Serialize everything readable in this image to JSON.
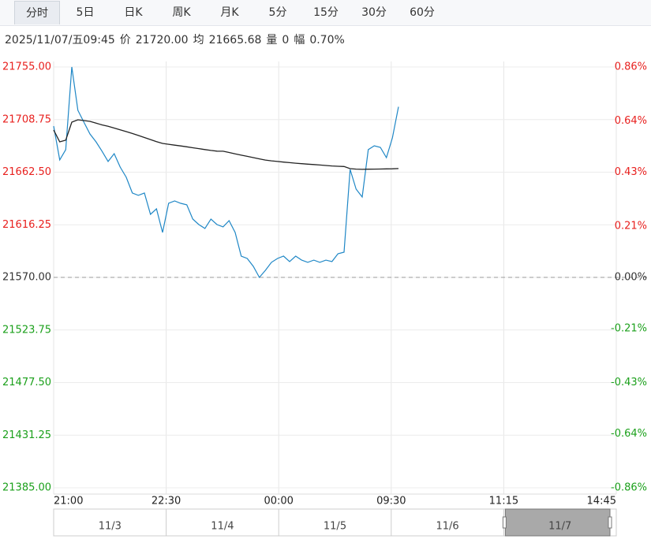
{
  "tabs": [
    "分时",
    "5日",
    "日K",
    "周K",
    "月K",
    "5分",
    "15分",
    "30分",
    "60分"
  ],
  "active_tab": 0,
  "info": {
    "datetime": "2025/11/07/五09:45",
    "price_label": "价",
    "price": "21720.00",
    "avg_label": "均",
    "avg": "21665.68",
    "volume_label": "量",
    "volume": "0",
    "range_label": "幅",
    "range": "0.70%"
  },
  "chart_data": {
    "type": "line",
    "x": [
      0,
      5,
      10,
      15,
      20,
      25,
      30,
      35,
      40,
      45,
      50,
      55,
      60,
      65,
      70,
      75,
      80,
      85,
      90,
      95,
      100,
      105,
      110,
      115,
      120,
      125,
      130,
      135,
      140,
      145,
      150,
      155,
      160,
      165,
      170,
      175,
      180,
      185,
      190,
      195,
      200,
      205,
      210,
      215,
      220,
      225,
      230,
      235,
      240,
      245,
      250,
      255,
      260,
      265,
      270,
      275,
      280,
      285
    ],
    "series": [
      {
        "color": "#1f87c6",
        "values": [
          21703.0,
          21673.3,
          21682.3,
          21755.0,
          21716.9,
          21706.5,
          21696.1,
          21689.2,
          21680.9,
          21671.9,
          21678.8,
          21667.0,
          21658.0,
          21644.2,
          21642.1,
          21644.2,
          21625.4,
          21630.3,
          21609.5,
          21635.1,
          21637.2,
          21635.1,
          21633.8,
          21621.3,
          21616.4,
          21613.0,
          21621.3,
          21616.4,
          21614.4,
          21619.9,
          21609.5,
          21588.7,
          21586.6,
          21579.7,
          21570.0,
          21576.2,
          21583.2,
          21586.6,
          21588.7,
          21583.9,
          21588.7,
          21585.2,
          21583.2,
          21585.2,
          21583.2,
          21585.2,
          21583.9,
          21590.8,
          21592.2,
          21664.9,
          21647.6,
          21640.7,
          21682.3,
          21685.7,
          21684.3,
          21675.3,
          21692.7,
          21720.0
        ]
      },
      {
        "color": "#222222",
        "values": [
          21699.6,
          21689.2,
          21690.6,
          21706.5,
          21708.6,
          21707.9,
          21707.2,
          21705.6,
          21704.1,
          21702.8,
          21701.3,
          21699.8,
          21698.2,
          21696.5,
          21694.8,
          21693.0,
          21691.2,
          21689.4,
          21687.8,
          21687.0,
          21686.3,
          21685.6,
          21684.8,
          21684.0,
          21683.2,
          21682.4,
          21681.6,
          21681.0,
          21680.9,
          21679.8,
          21678.6,
          21677.5,
          21676.4,
          21675.3,
          21674.2,
          21673.2,
          21672.5,
          21671.9,
          21671.4,
          21670.9,
          21670.4,
          21670.0,
          21669.6,
          21669.2,
          21668.8,
          21668.4,
          21668.0,
          21667.7,
          21667.5,
          21665.6,
          21665.2,
          21665.0,
          21665.1,
          21665.2,
          21665.3,
          21665.4,
          21665.5,
          21665.68
        ]
      }
    ],
    "xlim": [
      0,
      465
    ],
    "xticks": [
      {
        "value": 0,
        "label": "21:00"
      },
      {
        "value": 93,
        "label": "22:30"
      },
      {
        "value": 186,
        "label": "00:00"
      },
      {
        "value": 279,
        "label": "09:30"
      },
      {
        "value": 372,
        "label": "11:15"
      },
      {
        "value": 465,
        "label": "14:45"
      }
    ],
    "ylim": [
      21385,
      21755
    ],
    "yticks": [
      {
        "value": 21755,
        "label": "21755.00"
      },
      {
        "value": 21708.75,
        "label": "21708.75"
      },
      {
        "value": 21662.5,
        "label": "21662.50"
      },
      {
        "value": 21616.25,
        "label": "21616.25"
      },
      {
        "value": 21570,
        "label": "21570.00"
      },
      {
        "value": 21523.75,
        "label": "21523.75"
      },
      {
        "value": 21477.5,
        "label": "21477.50"
      },
      {
        "value": 21431.25,
        "label": "21431.25"
      },
      {
        "value": 21385,
        "label": "21385.00"
      }
    ],
    "y2lim": [
      -0.86,
      0.86
    ],
    "y2ticks": [
      {
        "value": 0.86,
        "label": "0.86%"
      },
      {
        "value": 0.64,
        "label": "0.64%"
      },
      {
        "value": 0.43,
        "label": "0.43%"
      },
      {
        "value": 0.21,
        "label": "0.21%"
      },
      {
        "value": 0,
        "label": "0.00%"
      },
      {
        "value": -0.21,
        "label": "-0.21%"
      },
      {
        "value": -0.43,
        "label": "-0.43%"
      },
      {
        "value": -0.64,
        "label": "-0.64%"
      },
      {
        "value": -0.86,
        "label": "-0.86%"
      }
    ],
    "grid": true,
    "up_color": "#e8201e",
    "down_color": "#1ba01b",
    "flat_color": "#333333"
  },
  "navigator": {
    "dates": [
      "11/3",
      "11/4",
      "11/5",
      "11/6",
      "11/7"
    ],
    "selected": 4
  }
}
